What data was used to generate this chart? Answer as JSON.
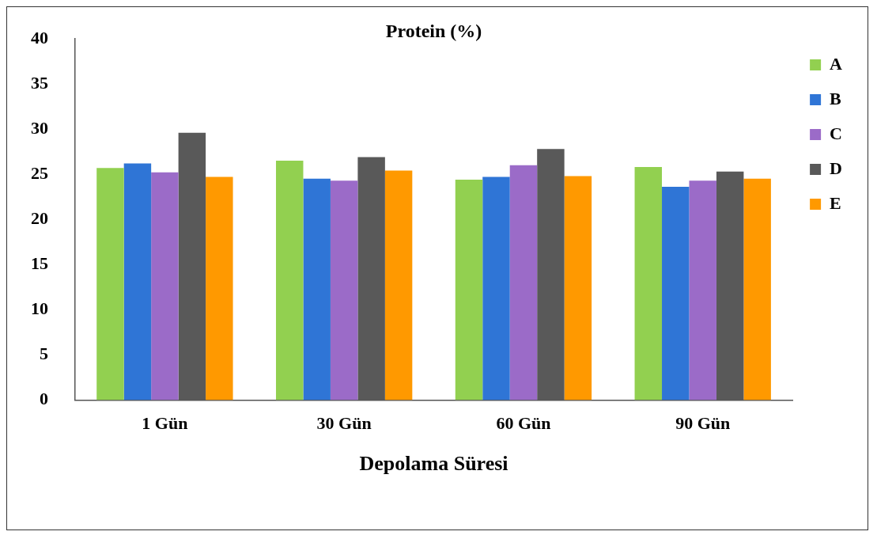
{
  "chart_data": {
    "type": "bar",
    "title": "Protein (%)",
    "xlabel": "Depolama Süresi",
    "categories": [
      "1 Gün",
      "30 Gün",
      "60 Gün",
      "90 Gün"
    ],
    "series": [
      {
        "name": "A",
        "color": "#92d050",
        "values": [
          25.7,
          26.5,
          24.4,
          25.8
        ]
      },
      {
        "name": "B",
        "color": "#2f75d6",
        "values": [
          26.2,
          24.5,
          24.7,
          23.6
        ]
      },
      {
        "name": "C",
        "color": "#9b6bc8",
        "values": [
          25.2,
          24.3,
          26.0,
          24.3
        ]
      },
      {
        "name": "D",
        "color": "#595959",
        "values": [
          29.6,
          26.9,
          27.8,
          25.3
        ]
      },
      {
        "name": "E",
        "color": "#ff9900",
        "values": [
          24.7,
          25.4,
          24.8,
          24.5
        ]
      }
    ],
    "ylim": [
      0,
      40
    ],
    "yticks": [
      0,
      5,
      10,
      15,
      20,
      25,
      30,
      35,
      40
    ],
    "grid": false,
    "legend": "right"
  }
}
